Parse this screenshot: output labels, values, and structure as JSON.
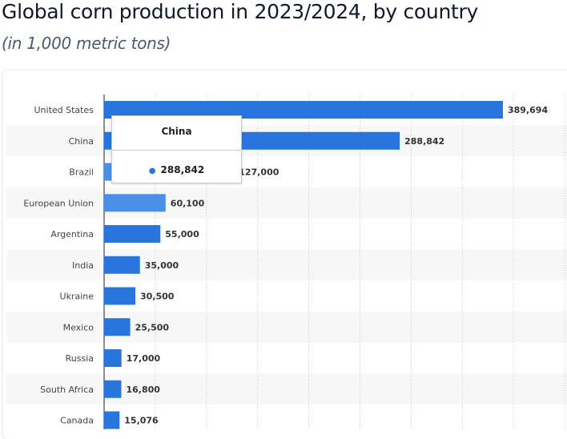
{
  "header": {
    "title": "Global corn production in 2023/2024, by country",
    "subtitle": "(in 1,000 metric tons)"
  },
  "tooltip": {
    "category": "China",
    "value": "288,842"
  },
  "colors": {
    "bar": "#2876dd",
    "bar_highlight": "#4a90e8",
    "band": "#f7f7f7",
    "grid": "#cccccc"
  },
  "chart_data": {
    "type": "bar",
    "orientation": "horizontal",
    "title": "Global corn production in 2023/2024, by country",
    "subtitle": "(in 1,000 metric tons)",
    "categories": [
      "United States",
      "China",
      "Brazil",
      "European Union",
      "Argentina",
      "India",
      "Ukraine",
      "Mexico",
      "Russia",
      "South Africa",
      "Canada"
    ],
    "values": [
      389694,
      288842,
      127000,
      60100,
      55000,
      35000,
      30500,
      25500,
      17000,
      16800,
      15076
    ],
    "labels": [
      "389,694",
      "288,842",
      "127,000",
      "60,100",
      "55,000",
      "35,000",
      "30,500",
      "25,500",
      "17,000",
      "16,800",
      "15,076"
    ],
    "highlighted": [
      "Brazil",
      "European Union"
    ],
    "xlim": [
      0,
      450000
    ],
    "grid_step": 50000,
    "grid": true
  }
}
